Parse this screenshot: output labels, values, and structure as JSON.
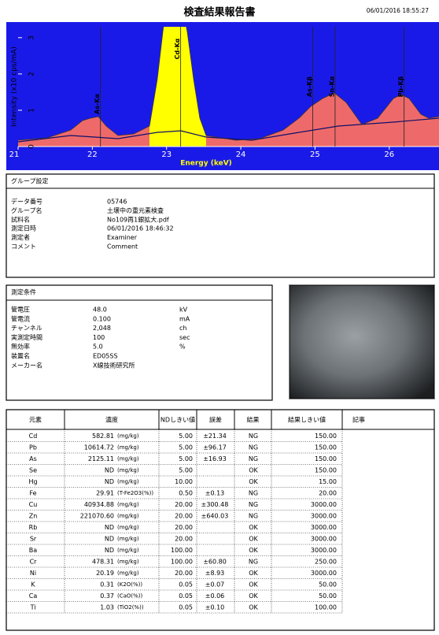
{
  "header": {
    "title": "検査結果報告書",
    "timestamp": "06/01/2016 18:55:27"
  },
  "spectrum": {
    "ylabel": "Intensity (x10 cps/mA)",
    "xlabel": "Energy (keV)",
    "xlim": [
      21,
      26.67
    ],
    "ylim": [
      0,
      3.3
    ],
    "xticks": [
      21,
      22,
      23,
      24,
      25,
      26
    ],
    "yticks": [
      0,
      1,
      2,
      3
    ],
    "peaks": [
      {
        "label": "As-Kα",
        "x": 22.11
      },
      {
        "label": "Cd-Kα",
        "x": 23.19
      },
      {
        "label": "As-Kβ",
        "x": 24.97
      },
      {
        "label": "Sn-Kα",
        "x": 25.27
      },
      {
        "label": "Pb-Kβ",
        "x": 26.2
      }
    ]
  },
  "group": {
    "title": "グループ設定",
    "fields": [
      {
        "label": "データ番号",
        "value": "05746"
      },
      {
        "label": "グループ名",
        "value": "土壌中の重元素検査"
      },
      {
        "label": "試料名",
        "value": "No109再1銀拡大.pdf"
      },
      {
        "label": "測定日時",
        "value": "06/01/2016 18:46:32"
      },
      {
        "label": "測定者",
        "value": "Examiner"
      },
      {
        "label": "コメント",
        "value": "Comment"
      }
    ]
  },
  "conditions": {
    "title": "測定条件",
    "fields": [
      {
        "label": "管電圧",
        "value": "48.0",
        "unit": "kV"
      },
      {
        "label": "管電流",
        "value": "0.100",
        "unit": "mA"
      },
      {
        "label": "チャンネル",
        "value": "2,048",
        "unit": "ch"
      },
      {
        "label": "実測定時間",
        "value": "100",
        "unit": "sec"
      },
      {
        "label": "無効率",
        "value": "5.0",
        "unit": "%"
      },
      {
        "label": "装置名",
        "value": "ED05SS"
      },
      {
        "label": "メーカー名",
        "value": "X線技術研究所"
      }
    ]
  },
  "table": {
    "headers": [
      "元素",
      "濃度",
      "NDしきい値",
      "誤差",
      "結果",
      "結果しきい値",
      "記事"
    ],
    "rows": [
      {
        "element": "Cd",
        "conc": "582.81",
        "unit": "(mg/kg)",
        "nd": "5.00",
        "error": "±21.34",
        "result": "NG",
        "threshold": "150.00"
      },
      {
        "element": "Pb",
        "conc": "10614.72",
        "unit": "(mg/kg)",
        "nd": "5.00",
        "error": "±96.17",
        "result": "NG",
        "threshold": "150.00"
      },
      {
        "element": "As",
        "conc": "2125.11",
        "unit": "(mg/kg)",
        "nd": "5.00",
        "error": "±16.93",
        "result": "NG",
        "threshold": "150.00"
      },
      {
        "element": "Se",
        "conc": "ND",
        "unit": "(mg/kg)",
        "nd": "5.00",
        "result": "OK",
        "threshold": "150.00"
      },
      {
        "element": "Hg",
        "conc": "ND",
        "unit": "(mg/kg)",
        "nd": "10.00",
        "result": "OK",
        "threshold": "15.00"
      },
      {
        "element": "Fe",
        "conc": "29.91",
        "unit": "(T-Fe2O3(%))",
        "nd": "0.50",
        "error": "±0.13",
        "result": "NG",
        "threshold": "20.00"
      },
      {
        "element": "Cu",
        "conc": "40934.88",
        "unit": "(mg/kg)",
        "nd": "20.00",
        "error": "±300.48",
        "result": "NG",
        "threshold": "3000.00"
      },
      {
        "element": "Zn",
        "conc": "221070.60",
        "unit": "(mg/kg)",
        "nd": "20.00",
        "error": "±640.03",
        "result": "NG",
        "threshold": "3000.00"
      },
      {
        "element": "Rb",
        "conc": "ND",
        "unit": "(mg/kg)",
        "nd": "20.00",
        "result": "OK",
        "threshold": "3000.00"
      },
      {
        "element": "Sr",
        "conc": "ND",
        "unit": "(mg/kg)",
        "nd": "20.00",
        "result": "OK",
        "threshold": "3000.00"
      },
      {
        "element": "Ba",
        "conc": "ND",
        "unit": "(mg/kg)",
        "nd": "100.00",
        "result": "OK",
        "threshold": "3000.00"
      },
      {
        "element": "Cr",
        "conc": "478.31",
        "unit": "(mg/kg)",
        "nd": "100.00",
        "error": "±60.80",
        "result": "NG",
        "threshold": "250.00"
      },
      {
        "element": "Ni",
        "conc": "20.19",
        "unit": "(mg/kg)",
        "nd": "20.00",
        "error": "±8.93",
        "result": "OK",
        "threshold": "3000.00"
      },
      {
        "element": "K",
        "conc": "0.31",
        "unit": "(K2O(%))",
        "nd": "0.05",
        "error": "±0.07",
        "result": "OK",
        "threshold": "50.00"
      },
      {
        "element": "Ca",
        "conc": "0.37",
        "unit": "(CaO(%))",
        "nd": "0.05",
        "error": "±0.06",
        "result": "OK",
        "threshold": "50.00"
      },
      {
        "element": "Ti",
        "conc": "1.03",
        "unit": "(TiO2(%))",
        "nd": "0.05",
        "error": "±0.10",
        "result": "OK",
        "threshold": "100.00"
      }
    ]
  }
}
